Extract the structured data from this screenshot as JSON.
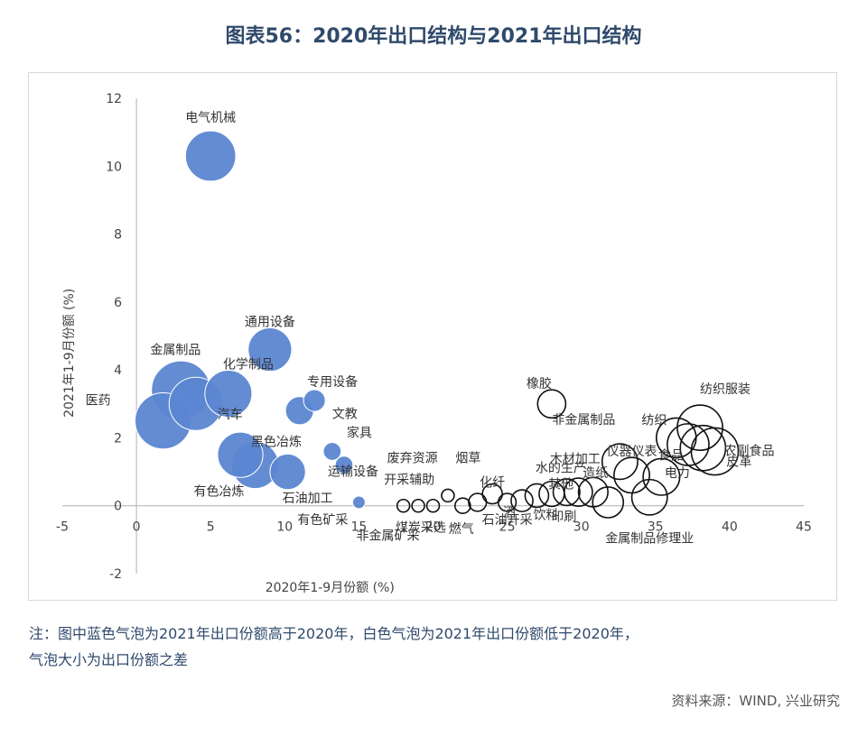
{
  "header": {
    "title": "图表56：2020年出口结构与2021年出口结构"
  },
  "footer": {
    "note_line1": "注：图中蓝色气泡为2021年出口份额高于2020年，白色气泡为2021年出口份额低于2020年，",
    "note_line2": "气泡大小为出口份额之差",
    "source": "资料来源：WIND, 兴业研究"
  },
  "chart_data": {
    "type": "scatter",
    "xlabel": "2020年1-9月份额 (%)",
    "ylabel": "2021年1-9月份额 (%)",
    "xlim": [
      -5,
      45
    ],
    "ylim": [
      -2,
      12
    ],
    "x_ticks": [
      -5,
      0,
      5,
      10,
      15,
      20,
      25,
      30,
      35,
      40,
      45
    ],
    "y_ticks": [
      -2,
      0,
      2,
      4,
      6,
      8,
      10,
      12
    ],
    "grid": false,
    "colors": {
      "increase": "#5b86d1",
      "increase_stroke": "#ffffff",
      "decrease": "#ffffff",
      "decrease_stroke": "#111111"
    },
    "points": [
      {
        "label": "电气机械",
        "x": 5.0,
        "y": 10.3,
        "size": 1.6,
        "increase": true
      },
      {
        "label": "通用设备",
        "x": 9.0,
        "y": 4.6,
        "size": 1.2,
        "increase": true
      },
      {
        "label": "金属制品",
        "x": 3.0,
        "y": 3.4,
        "size": 2.2,
        "increase": true
      },
      {
        "label": "化学制品",
        "x": 6.2,
        "y": 3.3,
        "size": 1.4,
        "increase": true
      },
      {
        "label": "医药",
        "x": 1.8,
        "y": 2.5,
        "size": 2.0,
        "increase": true
      },
      {
        "label": "汽车",
        "x": 4.0,
        "y": 3.0,
        "size": 1.8,
        "increase": true
      },
      {
        "label": "专用设备",
        "x": 12.0,
        "y": 3.1,
        "size": 0.3,
        "increase": true
      },
      {
        "label": "文教",
        "x": 11.0,
        "y": 2.8,
        "size": 0.5,
        "increase": true
      },
      {
        "label": "黑色冶炼",
        "x": 7.0,
        "y": 1.5,
        "size": 1.3,
        "increase": true
      },
      {
        "label": "家具",
        "x": 13.2,
        "y": 1.6,
        "size": 0.2,
        "increase": true
      },
      {
        "label": "有色冶炼",
        "x": 8.0,
        "y": 1.2,
        "size": 1.4,
        "increase": true
      },
      {
        "label": "石油加工",
        "x": 10.2,
        "y": 1.0,
        "size": 0.8,
        "increase": true
      },
      {
        "label": "运输设备",
        "x": 14.0,
        "y": 1.2,
        "size": 0.2,
        "increase": true
      },
      {
        "label": "有色矿采",
        "x": 15.0,
        "y": 0.1,
        "size": 0.1,
        "increase": true
      },
      {
        "label": "废弃资源",
        "x": 18.0,
        "y": 0.0,
        "size": 0.1,
        "increase": false
      },
      {
        "label": "开采辅助",
        "x": 19.0,
        "y": 0.0,
        "size": 0.1,
        "increase": false
      },
      {
        "label": "非金属矿采",
        "x": 20.0,
        "y": 0.0,
        "size": 0.1,
        "increase": false
      },
      {
        "label": "煤炭采选",
        "x": 21.0,
        "y": 0.3,
        "size": 0.1,
        "increase": false
      },
      {
        "label": "烟草",
        "x": 22.0,
        "y": 0.0,
        "size": 0.15,
        "increase": false
      },
      {
        "label": "燃气",
        "x": 23.0,
        "y": 0.1,
        "size": 0.2,
        "increase": false
      },
      {
        "label": "化纤",
        "x": 24.0,
        "y": 0.35,
        "size": 0.25,
        "increase": false
      },
      {
        "label": "石油开采",
        "x": 25.0,
        "y": 0.1,
        "size": 0.2,
        "increase": false
      },
      {
        "label": "酒",
        "x": 26.0,
        "y": 0.15,
        "size": 0.3,
        "increase": false
      },
      {
        "label": "饮料",
        "x": 27.0,
        "y": 0.3,
        "size": 0.35,
        "increase": false
      },
      {
        "label": "水的生产",
        "x": 28.0,
        "y": 0.35,
        "size": 0.4,
        "increase": false
      },
      {
        "label": "其他",
        "x": 29.0,
        "y": 0.4,
        "size": 0.45,
        "increase": false
      },
      {
        "label": "橡胶",
        "x": 28.0,
        "y": 3.0,
        "size": 0.5,
        "increase": false
      },
      {
        "label": "印刷",
        "x": 29.8,
        "y": 0.4,
        "size": 0.5,
        "increase": false
      },
      {
        "label": "木材加工",
        "x": 30.8,
        "y": 0.4,
        "size": 0.55,
        "increase": false
      },
      {
        "label": "造纸",
        "x": 31.8,
        "y": 0.1,
        "size": 0.6,
        "increase": false
      },
      {
        "label": "非金属制品",
        "x": 32.6,
        "y": 1.3,
        "size": 0.8,
        "increase": false
      },
      {
        "label": "仪器仪表",
        "x": 33.4,
        "y": 0.9,
        "size": 0.8,
        "increase": false
      },
      {
        "label": "金属制品修理业",
        "x": 34.6,
        "y": 0.25,
        "size": 0.8,
        "increase": false
      },
      {
        "label": "纺织",
        "x": 35.4,
        "y": 0.85,
        "size": 0.85,
        "increase": false
      },
      {
        "label": "食品",
        "x": 36.4,
        "y": 2.0,
        "size": 1.0,
        "increase": false
      },
      {
        "label": "电力",
        "x": 37.2,
        "y": 1.8,
        "size": 1.1,
        "increase": false
      },
      {
        "label": "纺织服装",
        "x": 38.0,
        "y": 2.3,
        "size": 1.3,
        "increase": false
      },
      {
        "label": "皮革",
        "x": 38.2,
        "y": 1.7,
        "size": 1.3,
        "increase": false
      },
      {
        "label": "农副食品",
        "x": 39.0,
        "y": 1.6,
        "size": 1.4,
        "increase": false
      }
    ]
  }
}
